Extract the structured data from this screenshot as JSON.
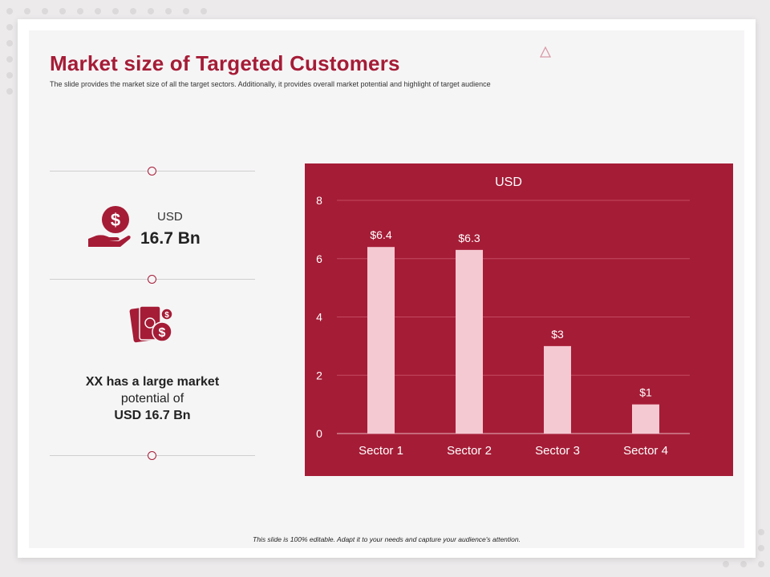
{
  "slide": {
    "title": "Market size of Targeted Customers",
    "subtitle": "The slide provides the market  size of all  the target sectors. Additionally,  it  provides overall market  potential  and highlight   of target audience",
    "footer": "This slide is 100% editable. Adapt it to your needs and capture your audience's attention."
  },
  "left_panel": {
    "usd_label": "USD",
    "usd_value": "16.7 Bn",
    "potential_line1": "XX has a large market",
    "potential_line2": "potential of",
    "potential_line3": "USD 16.7 Bn",
    "icons": [
      "dollar-hand-icon",
      "money-cash-icon"
    ]
  },
  "colors": {
    "accent": "#a51c36",
    "bar": "#f5c9d2"
  },
  "chart_data": {
    "type": "bar",
    "title": "USD",
    "categories": [
      "Sector 1",
      "Sector 2",
      "Sector 3",
      "Sector 4"
    ],
    "values": [
      6.4,
      6.3,
      3,
      1
    ],
    "data_labels": [
      "$6.4",
      "$6.3",
      "$3",
      "$1"
    ],
    "xlabel": "",
    "ylabel": "",
    "ylim": [
      0,
      8
    ],
    "yticks": [
      0,
      2,
      4,
      6,
      8
    ],
    "grid": true,
    "legend": "none"
  }
}
